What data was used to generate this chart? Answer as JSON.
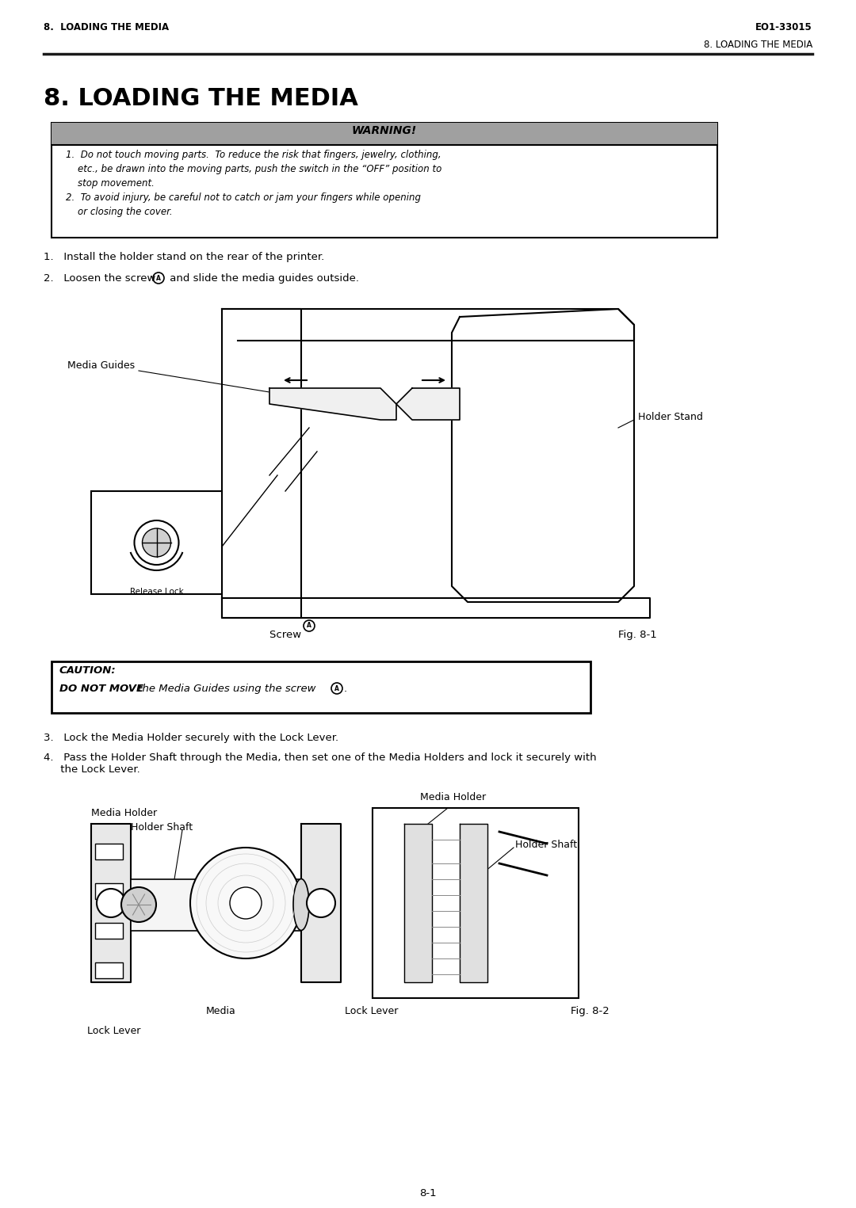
{
  "page_bg": "#ffffff",
  "header_left": "8.  LOADING THE MEDIA",
  "header_right": "EO1-33015",
  "subheader_right": "8. LOADING THE MEDIA",
  "section_title": "8. LOADING THE MEDIA",
  "warning_title": "WARNING!",
  "warning_bg": "#a0a0a0",
  "warning_border": "#000000",
  "warning_items": [
    "1.  Do not touch moving parts.  To reduce the risk that fingers, jewelry, clothing,\n    etc., be drawn into the moving parts, push the switch in the “OFF” position to\n    stop movement.",
    "2.  To avoid injury, be careful not to catch or jam your fingers while opening\n    or closing the cover."
  ],
  "step1": "1.   Install the holder stand on the rear of the printer.",
  "step2": "2.   Loosen the screw",
  "step2b": "and slide the media guides outside.",
  "label_media_guides": "Media Guides",
  "label_holder_stand": "Holder Stand",
  "label_release_lock": "Release Lock",
  "label_screw": "Screw",
  "label_fig81": "Fig. 8-1",
  "caution_title": "CAUTION:",
  "caution_text_bold": "DO NOT MOVE",
  "caution_text_rest": " the Media Guides using the screw",
  "step3": "3.   Lock the Media Holder securely with the Lock Lever.",
  "step4": "4.   Pass the Holder Shaft through the Media, then set one of the Media Holders and lock it securely with\n     the Lock Lever.",
  "label_media_holder_left": "Media Holder",
  "label_holder_shaft_left": "Holder Shaft",
  "label_media_holder_right": "Media Holder",
  "label_holder_shaft_right": "Holder Shaft",
  "label_media": "Media",
  "label_lock_lever_center": "Lock Lever",
  "label_lock_lever_left": "Lock Lever",
  "label_fig82": "Fig. 8-2",
  "page_number": "8-1",
  "line_color": "#1a1a1a",
  "text_color": "#000000",
  "font_size_header": 8.5,
  "font_size_title": 20,
  "font_size_body": 9,
  "caution_border": "#000000",
  "caution_bg": "#ffffff"
}
